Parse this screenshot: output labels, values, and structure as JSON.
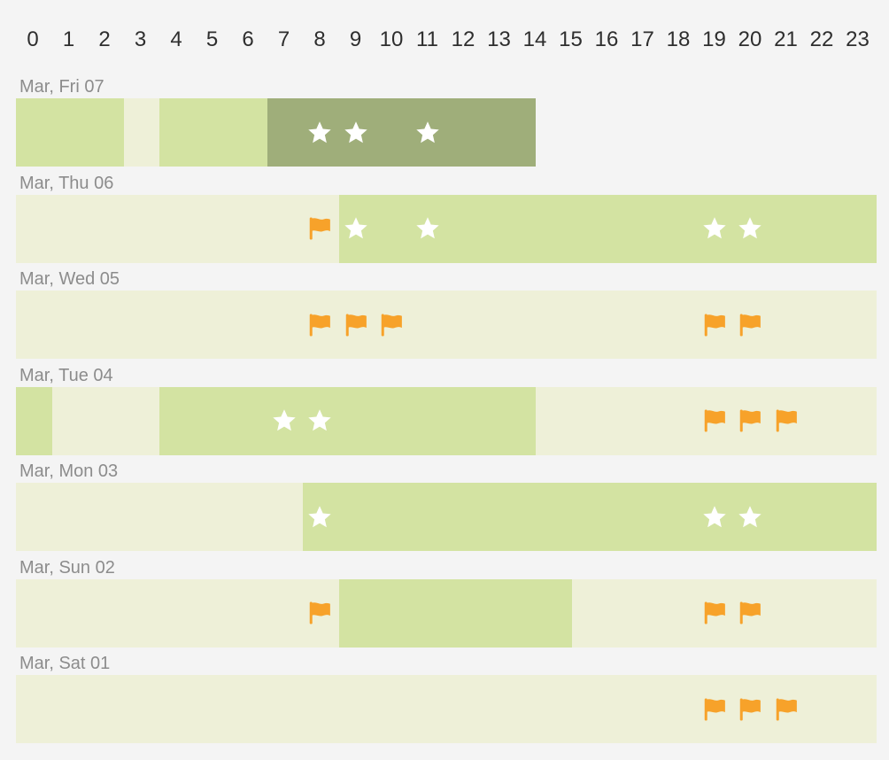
{
  "colors": {
    "background": "#f4f4f4",
    "level_0": "#eef0d8",
    "level_1": "#d3e3a2",
    "level_2": "#9fae7a",
    "star": "#ffffff",
    "flag": "#f7a22a"
  },
  "chart_data": {
    "type": "heatmap",
    "hours": [
      0,
      1,
      2,
      3,
      4,
      5,
      6,
      7,
      8,
      9,
      10,
      11,
      12,
      13,
      14,
      15,
      16,
      17,
      18,
      19,
      20,
      21,
      22,
      23
    ],
    "days": [
      {
        "label": "Mar, Fri 07",
        "segments": [
          {
            "start": 0,
            "end": 3,
            "level": 1
          },
          {
            "start": 3,
            "end": 4,
            "level": 0
          },
          {
            "start": 4,
            "end": 7,
            "level": 1
          },
          {
            "start": 7,
            "end": 14.5,
            "level": 2
          }
        ],
        "markers": [
          {
            "hour": 8,
            "icon": "star-icon"
          },
          {
            "hour": 9,
            "icon": "star-icon"
          },
          {
            "hour": 11,
            "icon": "star-icon"
          }
        ]
      },
      {
        "label": "Mar, Thu 06",
        "segments": [
          {
            "start": 0,
            "end": 9,
            "level": 0
          },
          {
            "start": 9,
            "end": 24,
            "level": 1
          }
        ],
        "markers": [
          {
            "hour": 8,
            "icon": "flag-icon"
          },
          {
            "hour": 9,
            "icon": "star-icon"
          },
          {
            "hour": 11,
            "icon": "star-icon"
          },
          {
            "hour": 19,
            "icon": "star-icon"
          },
          {
            "hour": 20,
            "icon": "star-icon"
          }
        ]
      },
      {
        "label": "Mar, Wed 05",
        "segments": [
          {
            "start": 0,
            "end": 24,
            "level": 0
          }
        ],
        "markers": [
          {
            "hour": 8,
            "icon": "flag-icon"
          },
          {
            "hour": 9,
            "icon": "flag-icon"
          },
          {
            "hour": 10,
            "icon": "flag-icon"
          },
          {
            "hour": 19,
            "icon": "flag-icon"
          },
          {
            "hour": 20,
            "icon": "flag-icon"
          }
        ]
      },
      {
        "label": "Mar, Tue 04",
        "segments": [
          {
            "start": 0,
            "end": 1,
            "level": 1
          },
          {
            "start": 1,
            "end": 4,
            "level": 0
          },
          {
            "start": 4,
            "end": 14.5,
            "level": 1
          },
          {
            "start": 14.5,
            "end": 24,
            "level": 0
          }
        ],
        "markers": [
          {
            "hour": 7,
            "icon": "star-icon"
          },
          {
            "hour": 8,
            "icon": "star-icon"
          },
          {
            "hour": 19,
            "icon": "flag-icon"
          },
          {
            "hour": 20,
            "icon": "flag-icon"
          },
          {
            "hour": 21,
            "icon": "flag-icon"
          }
        ]
      },
      {
        "label": "Mar, Mon 03",
        "segments": [
          {
            "start": 0,
            "end": 8,
            "level": 0
          },
          {
            "start": 8,
            "end": 24,
            "level": 1
          }
        ],
        "markers": [
          {
            "hour": 8,
            "icon": "star-icon"
          },
          {
            "hour": 19,
            "icon": "star-icon"
          },
          {
            "hour": 20,
            "icon": "star-icon"
          }
        ]
      },
      {
        "label": "Mar, Sun 02",
        "segments": [
          {
            "start": 0,
            "end": 9,
            "level": 0
          },
          {
            "start": 9,
            "end": 15.5,
            "level": 1
          },
          {
            "start": 15.5,
            "end": 24,
            "level": 0
          }
        ],
        "markers": [
          {
            "hour": 8,
            "icon": "flag-icon"
          },
          {
            "hour": 19,
            "icon": "flag-icon"
          },
          {
            "hour": 20,
            "icon": "flag-icon"
          }
        ]
      },
      {
        "label": "Mar, Sat 01",
        "segments": [
          {
            "start": 0,
            "end": 24,
            "level": 0
          }
        ],
        "markers": [
          {
            "hour": 19,
            "icon": "flag-icon"
          },
          {
            "hour": 20,
            "icon": "flag-icon"
          },
          {
            "hour": 21,
            "icon": "flag-icon"
          }
        ]
      }
    ]
  }
}
